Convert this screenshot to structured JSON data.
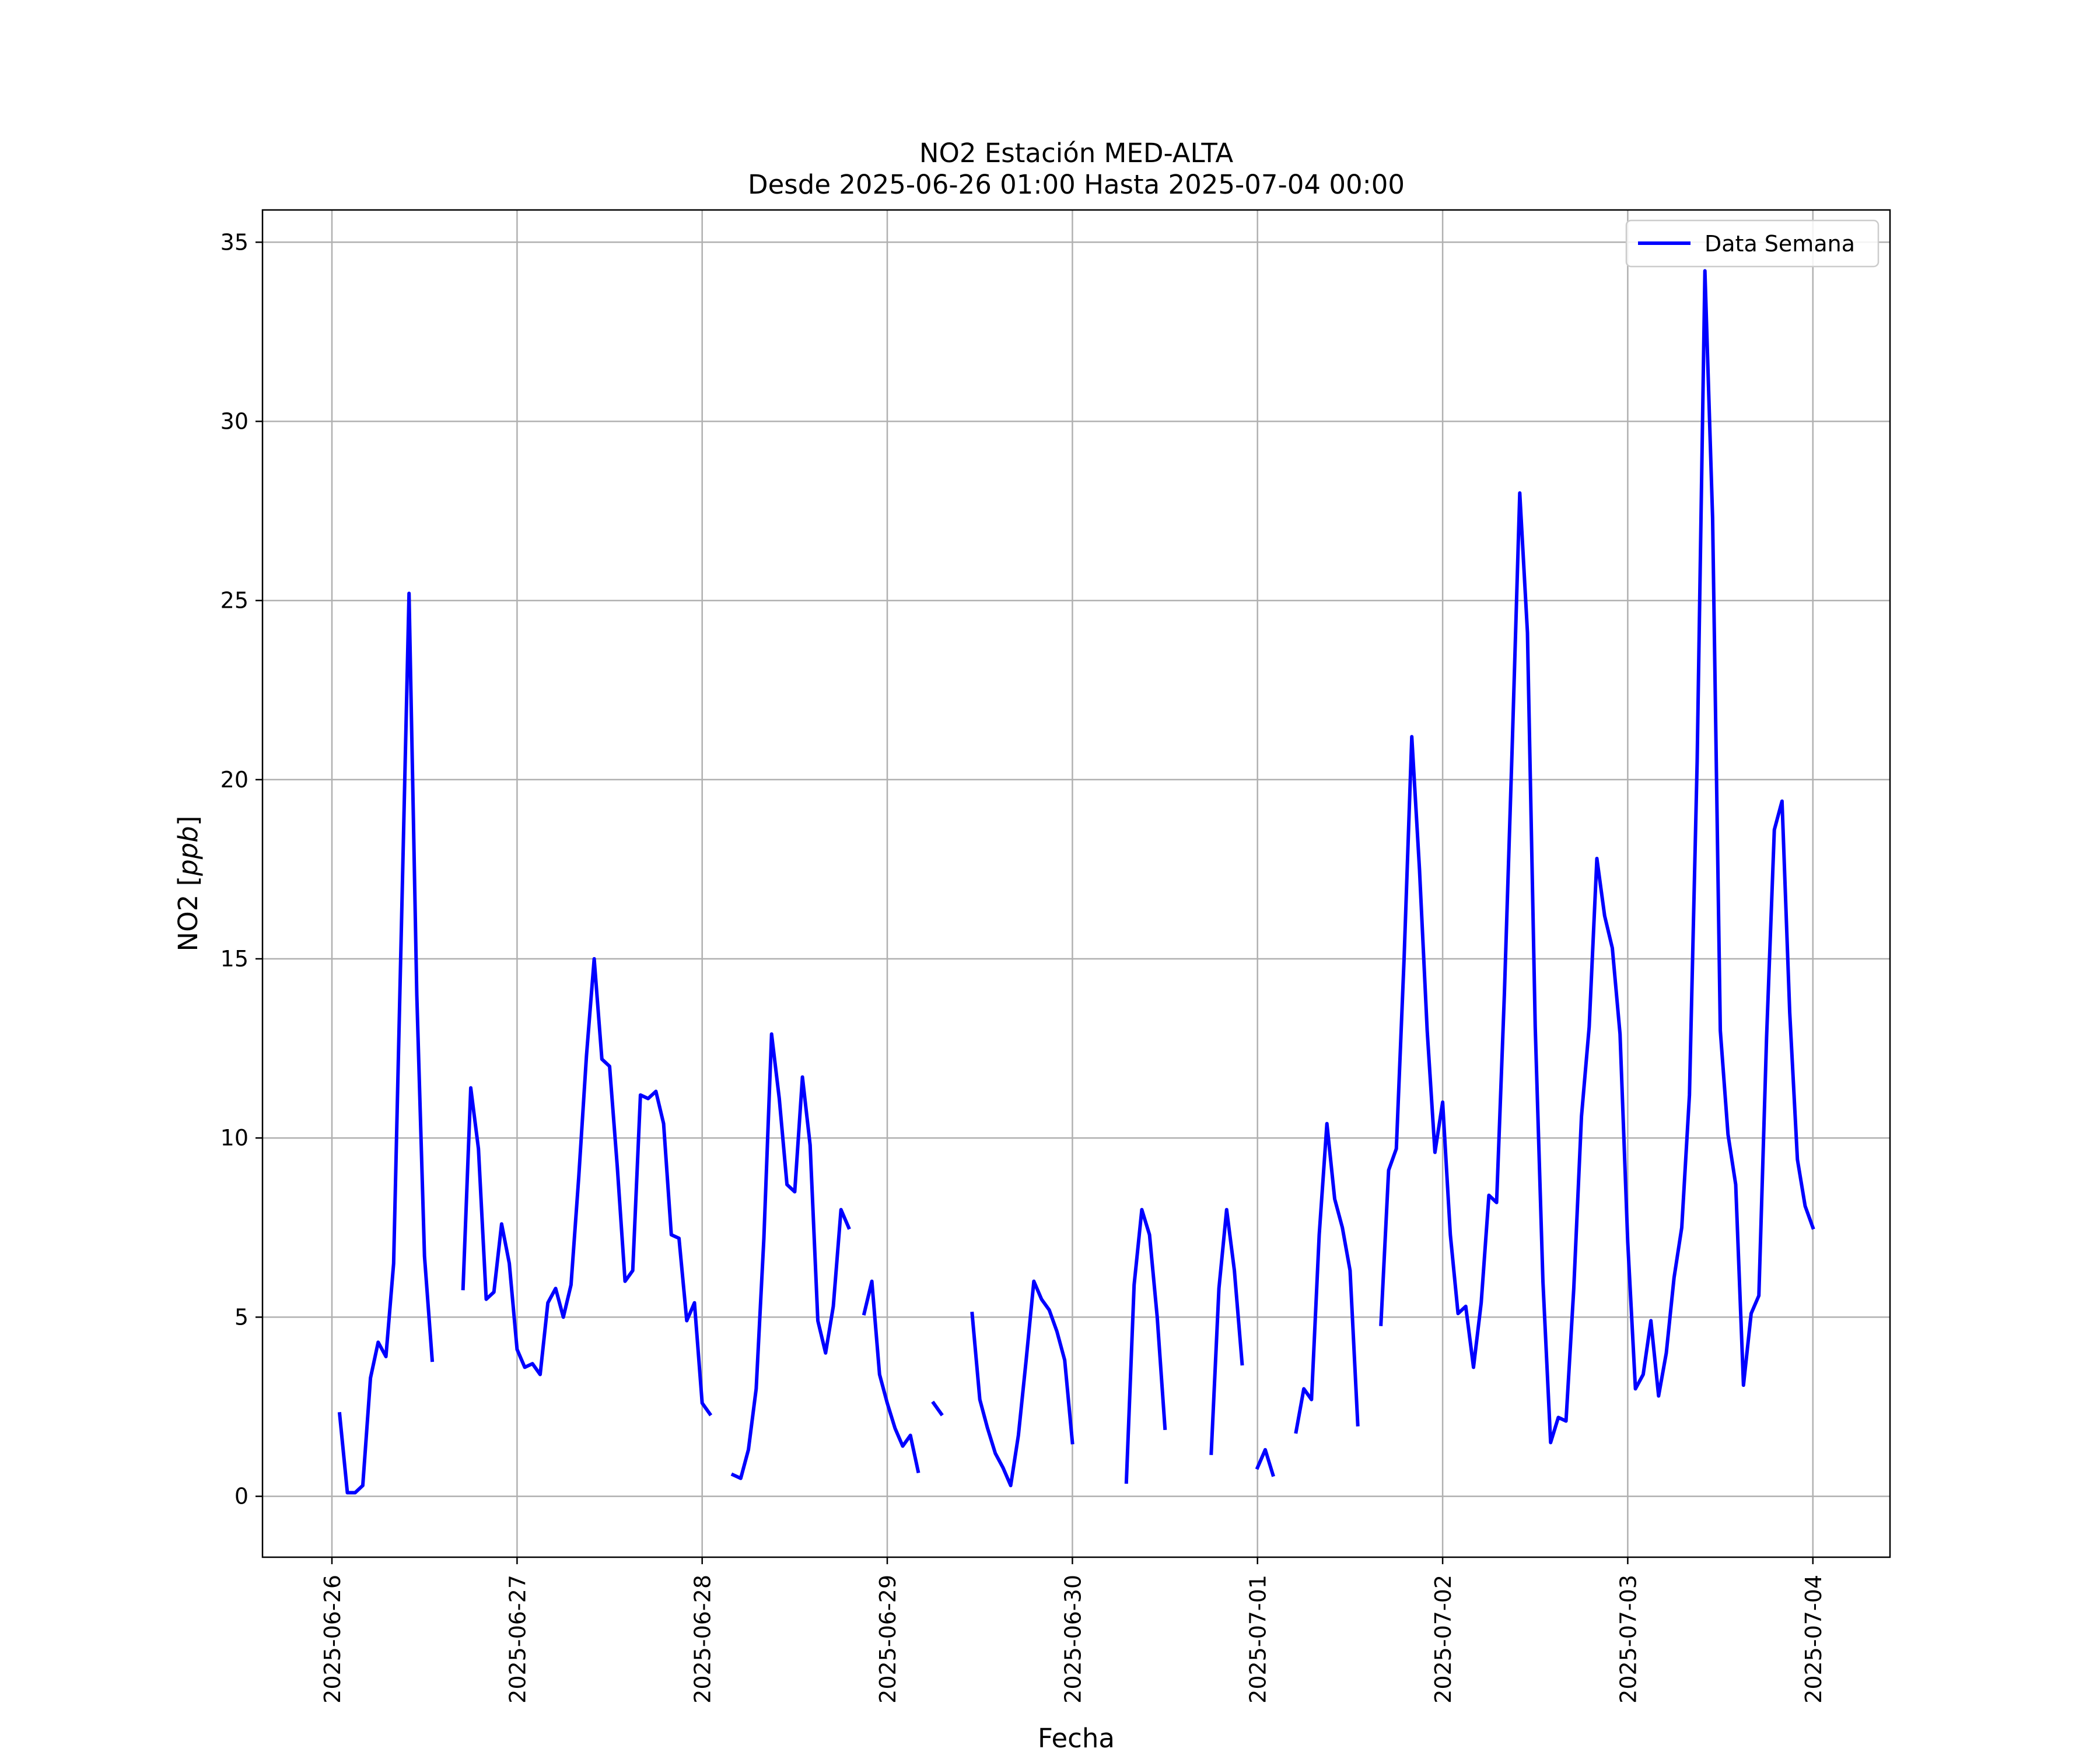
{
  "chart_data": {
    "type": "line",
    "title": "NO2 Estación MED-ALTA",
    "subtitle": "Desde 2025-06-26 01:00 Hasta 2025-07-04 00:00",
    "xlabel": "Fecha",
    "ylabel": "NO2 [ppb]",
    "ylabel_parts": {
      "prefix": "NO2 [",
      "unit": "ppb",
      "suffix": "]"
    },
    "xlim": [
      "2025-06-25 15:00",
      "2025-07-04 10:00"
    ],
    "ylim": [
      -1.7,
      35.9
    ],
    "grid": true,
    "legend_position": "upper right",
    "x_ticks": [
      "2025-06-26",
      "2025-06-27",
      "2025-06-28",
      "2025-06-29",
      "2025-06-30",
      "2025-07-01",
      "2025-07-02",
      "2025-07-03",
      "2025-07-04"
    ],
    "y_ticks": [
      0,
      5,
      10,
      15,
      20,
      25,
      30,
      35
    ],
    "series": [
      {
        "name": "Data Semana",
        "color": "#0000ff",
        "segments": [
          [
            [
              "2025-06-26 01:00",
              2.3
            ],
            [
              "2025-06-26 02:00",
              0.1
            ],
            [
              "2025-06-26 03:00",
              0.1
            ],
            [
              "2025-06-26 04:00",
              0.3
            ],
            [
              "2025-06-26 05:00",
              3.3
            ],
            [
              "2025-06-26 06:00",
              4.3
            ],
            [
              "2025-06-26 07:00",
              3.9
            ],
            [
              "2025-06-26 08:00",
              6.5
            ],
            [
              "2025-06-26 09:00",
              15.8
            ],
            [
              "2025-06-26 10:00",
              25.2
            ],
            [
              "2025-06-26 11:00",
              14.0
            ],
            [
              "2025-06-26 12:00",
              6.7
            ],
            [
              "2025-06-26 13:00",
              3.8
            ]
          ],
          [
            [
              "2025-06-26 17:00",
              5.8
            ],
            [
              "2025-06-26 18:00",
              11.4
            ],
            [
              "2025-06-26 19:00",
              9.7
            ],
            [
              "2025-06-26 20:00",
              5.5
            ],
            [
              "2025-06-26 21:00",
              5.7
            ],
            [
              "2025-06-26 22:00",
              7.6
            ],
            [
              "2025-06-26 23:00",
              6.5
            ],
            [
              "2025-06-27 00:00",
              4.1
            ],
            [
              "2025-06-27 01:00",
              3.6
            ],
            [
              "2025-06-27 02:00",
              3.7
            ],
            [
              "2025-06-27 03:00",
              3.4
            ],
            [
              "2025-06-27 04:00",
              5.4
            ],
            [
              "2025-06-27 05:00",
              5.8
            ],
            [
              "2025-06-27 06:00",
              5.0
            ],
            [
              "2025-06-27 07:00",
              5.9
            ],
            [
              "2025-06-27 08:00",
              8.9
            ],
            [
              "2025-06-27 09:00",
              12.3
            ],
            [
              "2025-06-27 10:00",
              15.0
            ],
            [
              "2025-06-27 11:00",
              12.2
            ],
            [
              "2025-06-27 12:00",
              12.0
            ],
            [
              "2025-06-27 13:00",
              9.2
            ],
            [
              "2025-06-27 14:00",
              6.0
            ],
            [
              "2025-06-27 15:00",
              6.3
            ],
            [
              "2025-06-27 16:00",
              11.2
            ],
            [
              "2025-06-27 17:00",
              11.1
            ],
            [
              "2025-06-27 18:00",
              11.3
            ],
            [
              "2025-06-27 19:00",
              10.4
            ],
            [
              "2025-06-27 20:00",
              7.3
            ],
            [
              "2025-06-27 21:00",
              7.2
            ],
            [
              "2025-06-27 22:00",
              4.9
            ],
            [
              "2025-06-27 23:00",
              5.4
            ],
            [
              "2025-06-28 00:00",
              2.6
            ],
            [
              "2025-06-28 01:00",
              2.3
            ]
          ],
          [
            [
              "2025-06-28 04:00",
              0.6
            ],
            [
              "2025-06-28 05:00",
              0.5
            ],
            [
              "2025-06-28 06:00",
              1.3
            ],
            [
              "2025-06-28 07:00",
              3.0
            ],
            [
              "2025-06-28 08:00",
              7.2
            ],
            [
              "2025-06-28 09:00",
              12.9
            ],
            [
              "2025-06-28 10:00",
              11.1
            ],
            [
              "2025-06-28 11:00",
              8.7
            ],
            [
              "2025-06-28 12:00",
              8.5
            ],
            [
              "2025-06-28 13:00",
              11.7
            ],
            [
              "2025-06-28 14:00",
              9.8
            ],
            [
              "2025-06-28 15:00",
              4.9
            ],
            [
              "2025-06-28 16:00",
              4.0
            ],
            [
              "2025-06-28 17:00",
              5.3
            ],
            [
              "2025-06-28 18:00",
              8.0
            ],
            [
              "2025-06-28 19:00",
              7.5
            ]
          ],
          [
            [
              "2025-06-28 21:00",
              5.1
            ],
            [
              "2025-06-28 22:00",
              6.0
            ],
            [
              "2025-06-28 23:00",
              3.4
            ],
            [
              "2025-06-29 00:00",
              2.6
            ],
            [
              "2025-06-29 01:00",
              1.9
            ],
            [
              "2025-06-29 02:00",
              1.4
            ],
            [
              "2025-06-29 03:00",
              1.7
            ],
            [
              "2025-06-29 04:00",
              0.7
            ]
          ],
          [
            [
              "2025-06-29 06:00",
              2.6
            ],
            [
              "2025-06-29 07:00",
              2.3
            ]
          ],
          [
            [
              "2025-06-29 11:00",
              5.1
            ],
            [
              "2025-06-29 12:00",
              2.7
            ],
            [
              "2025-06-29 13:00",
              1.9
            ],
            [
              "2025-06-29 14:00",
              1.2
            ],
            [
              "2025-06-29 15:00",
              0.8
            ],
            [
              "2025-06-29 16:00",
              0.3
            ],
            [
              "2025-06-29 17:00",
              1.7
            ],
            [
              "2025-06-29 18:00",
              3.8
            ],
            [
              "2025-06-29 19:00",
              6.0
            ],
            [
              "2025-06-29 20:00",
              5.5
            ],
            [
              "2025-06-29 21:00",
              5.2
            ],
            [
              "2025-06-29 22:00",
              4.6
            ],
            [
              "2025-06-29 23:00",
              3.8
            ],
            [
              "2025-06-30 00:00",
              1.5
            ]
          ],
          [
            [
              "2025-06-30 07:00",
              0.4
            ],
            [
              "2025-06-30 08:00",
              5.9
            ],
            [
              "2025-06-30 09:00",
              8.0
            ],
            [
              "2025-06-30 10:00",
              7.3
            ],
            [
              "2025-06-30 11:00",
              5.0
            ],
            [
              "2025-06-30 12:00",
              1.9
            ]
          ],
          [
            [
              "2025-06-30 18:00",
              1.2
            ],
            [
              "2025-06-30 19:00",
              5.8
            ],
            [
              "2025-06-30 20:00",
              8.0
            ],
            [
              "2025-06-30 21:00",
              6.3
            ],
            [
              "2025-06-30 22:00",
              3.7
            ]
          ],
          [
            [
              "2025-07-01 00:00",
              0.8
            ],
            [
              "2025-07-01 01:00",
              1.3
            ],
            [
              "2025-07-01 02:00",
              0.6
            ]
          ],
          [
            [
              "2025-07-01 05:00",
              1.8
            ],
            [
              "2025-07-01 06:00",
              3.0
            ],
            [
              "2025-07-01 07:00",
              2.7
            ],
            [
              "2025-07-01 08:00",
              7.3
            ],
            [
              "2025-07-01 09:00",
              10.4
            ],
            [
              "2025-07-01 10:00",
              8.3
            ],
            [
              "2025-07-01 11:00",
              7.5
            ],
            [
              "2025-07-01 12:00",
              6.3
            ],
            [
              "2025-07-01 13:00",
              2.0
            ]
          ],
          [
            [
              "2025-07-01 16:00",
              4.8
            ],
            [
              "2025-07-01 17:00",
              9.1
            ],
            [
              "2025-07-01 18:00",
              9.7
            ],
            [
              "2025-07-01 19:00",
              15.0
            ],
            [
              "2025-07-01 20:00",
              21.2
            ],
            [
              "2025-07-01 21:00",
              17.5
            ],
            [
              "2025-07-01 22:00",
              13.0
            ],
            [
              "2025-07-01 23:00",
              9.6
            ],
            [
              "2025-07-02 00:00",
              11.0
            ],
            [
              "2025-07-02 01:00",
              7.3
            ],
            [
              "2025-07-02 02:00",
              5.1
            ],
            [
              "2025-07-02 03:00",
              5.3
            ],
            [
              "2025-07-02 04:00",
              3.6
            ],
            [
              "2025-07-02 05:00",
              5.4
            ],
            [
              "2025-07-02 06:00",
              8.4
            ],
            [
              "2025-07-02 07:00",
              8.2
            ],
            [
              "2025-07-02 08:00",
              14.0
            ],
            [
              "2025-07-02 09:00",
              20.8
            ],
            [
              "2025-07-02 10:00",
              28.0
            ],
            [
              "2025-07-02 11:00",
              24.1
            ],
            [
              "2025-07-02 12:00",
              13.1
            ],
            [
              "2025-07-02 13:00",
              6.0
            ],
            [
              "2025-07-02 14:00",
              1.5
            ],
            [
              "2025-07-02 15:00",
              2.2
            ],
            [
              "2025-07-02 16:00",
              2.1
            ],
            [
              "2025-07-02 17:00",
              5.8
            ],
            [
              "2025-07-02 18:00",
              10.6
            ],
            [
              "2025-07-02 19:00",
              13.1
            ],
            [
              "2025-07-02 20:00",
              17.8
            ],
            [
              "2025-07-02 21:00",
              16.2
            ],
            [
              "2025-07-02 22:00",
              15.3
            ],
            [
              "2025-07-02 23:00",
              12.9
            ],
            [
              "2025-07-03 00:00",
              7.1
            ],
            [
              "2025-07-03 01:00",
              3.0
            ],
            [
              "2025-07-03 02:00",
              3.4
            ],
            [
              "2025-07-03 03:00",
              4.9
            ],
            [
              "2025-07-03 04:00",
              2.8
            ],
            [
              "2025-07-03 05:00",
              4.0
            ],
            [
              "2025-07-03 06:00",
              6.1
            ],
            [
              "2025-07-03 07:00",
              7.5
            ],
            [
              "2025-07-03 08:00",
              11.2
            ],
            [
              "2025-07-03 09:00",
              20.5
            ],
            [
              "2025-07-03 10:00",
              34.2
            ],
            [
              "2025-07-03 11:00",
              27.3
            ],
            [
              "2025-07-03 12:00",
              13.0
            ],
            [
              "2025-07-03 13:00",
              10.1
            ],
            [
              "2025-07-03 14:00",
              8.7
            ],
            [
              "2025-07-03 15:00",
              3.1
            ],
            [
              "2025-07-03 16:00",
              5.1
            ],
            [
              "2025-07-03 17:00",
              5.6
            ],
            [
              "2025-07-03 18:00",
              12.8
            ],
            [
              "2025-07-03 19:00",
              18.6
            ],
            [
              "2025-07-03 20:00",
              19.4
            ],
            [
              "2025-07-03 21:00",
              13.5
            ],
            [
              "2025-07-03 22:00",
              9.4
            ],
            [
              "2025-07-03 23:00",
              8.1
            ],
            [
              "2025-07-04 00:00",
              7.5
            ]
          ]
        ]
      }
    ]
  }
}
